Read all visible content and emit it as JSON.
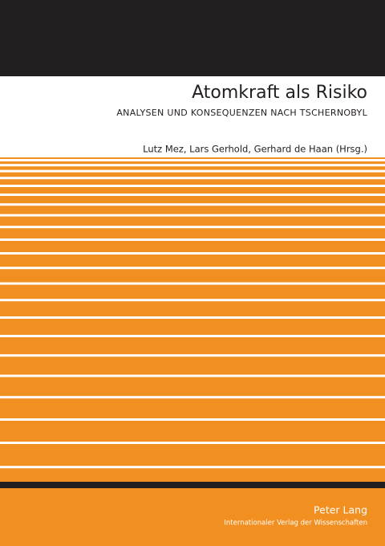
{
  "cover": {
    "title": "Atomkraft als Risiko",
    "subtitle": "ANALYSEN UND KONSEQUENZEN NACH TSCHERNOBYL",
    "authors": "Lutz Mez, Lars Gerhold, Gerhard de Haan (Hrsg.)",
    "publisher": "Peter Lang",
    "publisher_tagline": "Internationaler Verlag der Wissenschaften"
  }
}
